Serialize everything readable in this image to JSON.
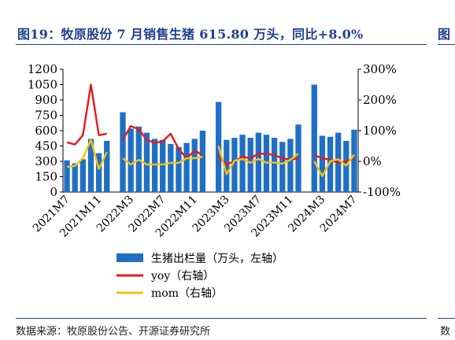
{
  "title": "图19：牧原股份 7 月销售生猪 615.80 万头，同比+8.0%",
  "title_next": "图",
  "source": "数据来源：牧原股份公告、开源证券研究所",
  "source_next": "数",
  "colors": {
    "bar": "#1f6fc5",
    "yoy": "#e41a1c",
    "mom": "#f4c20d",
    "rule": "#1f3f8f"
  },
  "chart_data": {
    "type": "bar",
    "title": "",
    "y_left": {
      "min": 0,
      "max": 1200,
      "ticks": [
        "0",
        "150",
        "300",
        "450",
        "600",
        "750",
        "900",
        "1050",
        "1200"
      ]
    },
    "y_right": {
      "min": -1.0,
      "max": 3.0,
      "ticks": [
        "-100%",
        "0%",
        "100%",
        "200%",
        "300%"
      ]
    },
    "x_tick_labels": [
      "2021M7",
      "2021M11",
      "2022M3",
      "2022M7",
      "2022M11",
      "2023M3",
      "2023M7",
      "2023M11",
      "2024M3",
      "2024M7"
    ],
    "groups": [
      {
        "months": [
          "2021M7",
          "2021M8",
          "2021M9",
          "2021M10",
          "2021M11",
          "2021M12"
        ],
        "volume": [
          310,
          280,
          320,
          520,
          380,
          500
        ],
        "yoy": [
          0.62,
          0.55,
          0.85,
          2.5,
          0.85,
          0.9
        ],
        "mom": [
          -0.18,
          -0.15,
          0.1,
          0.7,
          -0.25,
          0.3
        ]
      },
      {
        "months": [
          "2022M2",
          "2022M3",
          "2022M4",
          "2022M5",
          "2022M6",
          "2022M7",
          "2022M8",
          "2022M9",
          "2022M10",
          "2022M11",
          "2022M12"
        ],
        "volume": [
          780,
          620,
          640,
          580,
          520,
          510,
          470,
          440,
          480,
          520,
          600
        ],
        "yoy": [
          0.7,
          1.15,
          1.05,
          0.7,
          0.6,
          0.65,
          0.9,
          0.4,
          0.1,
          0.35,
          0.2
        ],
        "mom": [
          0.1,
          -0.1,
          0.05,
          -0.1,
          -0.1,
          -0.1,
          -0.05,
          -0.05,
          0.1,
          0.1,
          0.15
        ]
      },
      {
        "months": [
          "2023M2",
          "2023M3",
          "2023M4",
          "2023M5",
          "2023M6",
          "2023M7",
          "2023M8",
          "2023M9",
          "2023M10",
          "2023M11",
          "2023M12"
        ],
        "volume": [
          880,
          510,
          530,
          560,
          530,
          580,
          560,
          530,
          490,
          520,
          660
        ],
        "yoy": [
          0.15,
          -0.1,
          0.0,
          0.15,
          0.1,
          0.25,
          0.25,
          0.2,
          0.1,
          0.05,
          0.1
        ],
        "mom": [
          0.5,
          -0.42,
          0.02,
          0.08,
          -0.05,
          0.08,
          -0.04,
          -0.04,
          -0.08,
          0.05,
          0.25
        ]
      },
      {
        "months": [
          "2024M2",
          "2024M3",
          "2024M4",
          "2024M5",
          "2024M6",
          "2024M7"
        ],
        "volume": [
          1050,
          550,
          540,
          580,
          500,
          610
        ],
        "yoy": [
          0.2,
          0.1,
          0.05,
          -0.05,
          0.0,
          0.08
        ],
        "mom": [
          0.0,
          -0.48,
          0.0,
          0.07,
          -0.14,
          0.22
        ]
      }
    ],
    "legend": [
      {
        "key": "volume",
        "label": "生猪出栏量（万头，左轴）"
      },
      {
        "key": "yoy",
        "label": "yoy（右轴）"
      },
      {
        "key": "mom",
        "label": "mom（右轴）"
      }
    ],
    "legend_position": "bottom",
    "grid": false
  }
}
